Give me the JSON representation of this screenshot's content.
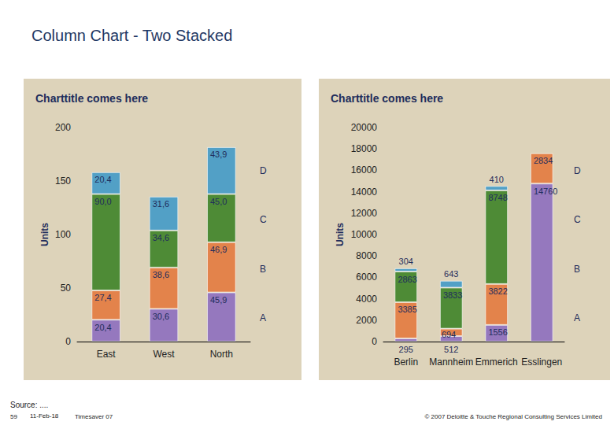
{
  "page": {
    "title": "Column Chart - Two Stacked",
    "source": "Source: ....",
    "page_number": "59",
    "date": "11-Feb-18",
    "product": "Timesaver 07",
    "copyright": "© 2007 Deloitte & Touche Regional Consulting Services Limited"
  },
  "chart_data": [
    {
      "type": "bar",
      "title": "Charttitle comes here",
      "y_label": "Units",
      "categories": [
        "East",
        "West",
        "North"
      ],
      "series": [
        {
          "name": "A",
          "color": "#9578be",
          "values": [
            20.4,
            30.6,
            45.9
          ],
          "value_labels": [
            "20,4",
            "30,6",
            "45,9"
          ]
        },
        {
          "name": "B",
          "color": "#e3834b",
          "values": [
            27.4,
            38.6,
            46.9
          ],
          "value_labels": [
            "27,4",
            "38,6",
            "46,9"
          ]
        },
        {
          "name": "C",
          "color": "#4e8b36",
          "values": [
            90.0,
            34.6,
            45.0
          ],
          "value_labels": [
            "90,0",
            "34,6",
            "45,0"
          ]
        },
        {
          "name": "D",
          "color": "#52a0c6",
          "values": [
            20.4,
            31.6,
            43.9
          ],
          "value_labels": [
            "20,4",
            "31,6",
            "43,9"
          ]
        }
      ],
      "ylim": [
        0,
        200
      ],
      "yticks": [
        0,
        50,
        100,
        150,
        200
      ],
      "stacked": true,
      "data_labels": true,
      "grid": false
    },
    {
      "type": "bar",
      "title": "Charttitle comes here",
      "y_label": "Units",
      "categories": [
        "Berlin",
        "Mannheim",
        "Emmerich",
        "Esslingen"
      ],
      "series": [
        {
          "name": "A",
          "color": "#9578be",
          "values": [
            295,
            512,
            1556,
            14760
          ]
        },
        {
          "name": "B",
          "color": "#e3834b",
          "values": [
            3385,
            694,
            3822,
            2834
          ]
        },
        {
          "name": "C",
          "color": "#4e8b36",
          "values": [
            2863,
            3833,
            8748,
            null
          ]
        },
        {
          "name": "D",
          "color": "#52a0c6",
          "values": [
            304,
            643,
            410,
            null
          ]
        }
      ],
      "ylim": [
        0,
        20000
      ],
      "yticks": [
        0,
        2000,
        4000,
        6000,
        8000,
        10000,
        12000,
        14000,
        16000,
        18000,
        20000
      ],
      "stacked": true,
      "data_labels": true,
      "grid": false
    }
  ]
}
